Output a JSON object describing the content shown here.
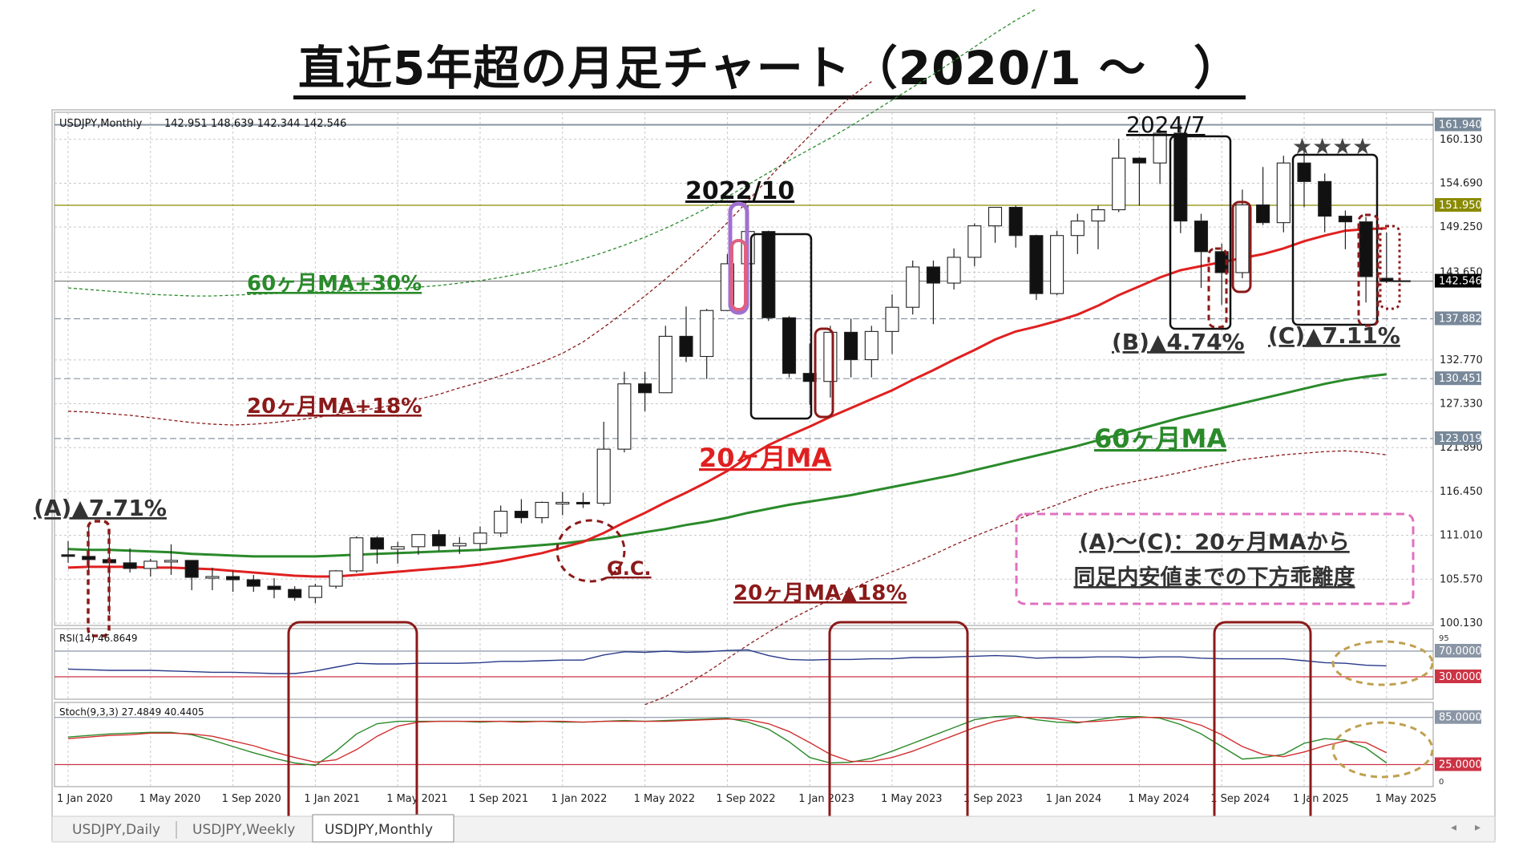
{
  "title": "直近5年超の月足チャート（2020/1 ～　）",
  "header": {
    "symbol": "USDJPY,Monthly",
    "ohlc": "142.951 148.639 142.344 142.546"
  },
  "price_axis": {
    "ticks": [
      "160.130",
      "154.690",
      "149.250",
      "143.650",
      "132.770",
      "127.330",
      "121.890",
      "116.450",
      "111.010",
      "105.570",
      "100.130"
    ],
    "marked": [
      {
        "label": "161.940",
        "bg": "#778899"
      },
      {
        "label": "151.950",
        "bg": "#8a8a00"
      },
      {
        "label": "142.546",
        "bg": "#000000"
      },
      {
        "label": "137.882",
        "bg": "#778899"
      },
      {
        "label": "130.451",
        "bg": "#778899"
      },
      {
        "label": "123.019",
        "bg": "#778899"
      }
    ]
  },
  "time_axis": [
    "1 Jan 2020",
    "1 May 2020",
    "1 Sep 2020",
    "1 Jan 2021",
    "1 May 2021",
    "1 Sep 2021",
    "1 Jan 2022",
    "1 May 2022",
    "1 Sep 2022",
    "1 Jan 2023",
    "1 May 2023",
    "1 Sep 2023",
    "1 Jan 2024",
    "1 May 2024",
    "1 Sep 2024",
    "1 Jan 2025",
    "1 May 2025"
  ],
  "rsi": {
    "label": "RSI(14) 46.8649",
    "levels": [
      "70.0000",
      "30.0000"
    ],
    "top_tick": "95"
  },
  "stoch": {
    "label": "Stoch(9,3,3) 27.4849 40.4405",
    "levels": [
      "85.0000",
      "25.0000"
    ],
    "bottom_tick": "0"
  },
  "tabs": [
    "USDJPY,Daily",
    "USDJPY,Weekly",
    "USDJPY,Monthly"
  ],
  "annotations": {
    "ma60_30": "60ヶ月MA+30%",
    "ma20_18": "20ヶ月MA+18%",
    "ma20": "20ヶ月MA",
    "ma60": "60ヶ月MA",
    "ma20_minus18": "20ヶ月MA▲18%",
    "gc": "G.C.",
    "y2022": "2022/10",
    "y2024": "2024/7",
    "stars": "★★★★",
    "a": "(A)▲7.71%",
    "b": "(B)▲4.74%",
    "c": "(C)▲7.11%",
    "note_line1": "(A)～(C)：20ヶ月MAから",
    "note_line2": "同足内安値までの下方乖離度"
  },
  "colors": {
    "ma20": "#e02020",
    "ma60": "#2a8a2a",
    "band_upper60": "#2a8a2a",
    "band20": "#8b1a1a",
    "rsi": "#283a8a",
    "stoch_main": "#2a8a2a",
    "stoch_signal": "#d03030",
    "annot_red": "#8b1a1a",
    "annot_green": "#2a8a2a"
  },
  "chart_data": {
    "type": "candlestick",
    "x": [
      "2020-01",
      "2020-02",
      "2020-03",
      "2020-04",
      "2020-05",
      "2020-06",
      "2020-07",
      "2020-08",
      "2020-09",
      "2020-10",
      "2020-11",
      "2020-12",
      "2021-01",
      "2021-02",
      "2021-03",
      "2021-04",
      "2021-05",
      "2021-06",
      "2021-07",
      "2021-08",
      "2021-09",
      "2021-10",
      "2021-11",
      "2021-12",
      "2022-01",
      "2022-02",
      "2022-03",
      "2022-04",
      "2022-05",
      "2022-06",
      "2022-07",
      "2022-08",
      "2022-09",
      "2022-10",
      "2022-11",
      "2022-12",
      "2023-01",
      "2023-02",
      "2023-03",
      "2023-04",
      "2023-05",
      "2023-06",
      "2023-07",
      "2023-08",
      "2023-09",
      "2023-10",
      "2023-11",
      "2023-12",
      "2024-01",
      "2024-02",
      "2024-03",
      "2024-04",
      "2024-05",
      "2024-06",
      "2024-07",
      "2024-08",
      "2024-09",
      "2024-10",
      "2024-11",
      "2024-12",
      "2025-01",
      "2025-02",
      "2025-03",
      "2025-04",
      "2025-05"
    ],
    "ohlc": [
      [
        108.6,
        110.3,
        107.6,
        108.4
      ],
      [
        108.4,
        112.2,
        106.1,
        108.0
      ],
      [
        108.0,
        111.7,
        101.2,
        107.6
      ],
      [
        107.6,
        109.4,
        106.4,
        106.9
      ],
      [
        106.9,
        108.1,
        105.9,
        107.8
      ],
      [
        107.8,
        109.9,
        106.1,
        107.9
      ],
      [
        107.9,
        107.9,
        104.2,
        105.8
      ],
      [
        105.8,
        107.0,
        104.2,
        105.9
      ],
      [
        105.9,
        106.6,
        104.0,
        105.5
      ],
      [
        105.5,
        106.1,
        104.0,
        104.7
      ],
      [
        104.7,
        105.7,
        103.2,
        104.3
      ],
      [
        104.3,
        104.7,
        102.9,
        103.3
      ],
      [
        103.3,
        105.0,
        102.6,
        104.7
      ],
      [
        104.7,
        106.7,
        104.4,
        106.6
      ],
      [
        106.6,
        110.9,
        106.4,
        110.7
      ],
      [
        110.7,
        110.9,
        107.5,
        109.3
      ],
      [
        109.3,
        110.2,
        107.5,
        109.6
      ],
      [
        109.6,
        111.1,
        108.6,
        111.1
      ],
      [
        111.1,
        111.7,
        109.1,
        109.7
      ],
      [
        109.7,
        110.8,
        108.7,
        110.0
      ],
      [
        110.0,
        112.1,
        109.1,
        111.3
      ],
      [
        111.3,
        114.7,
        110.8,
        114.0
      ],
      [
        114.0,
        115.5,
        112.5,
        113.2
      ],
      [
        113.2,
        115.2,
        112.5,
        115.1
      ],
      [
        115.1,
        116.4,
        113.5,
        115.1
      ],
      [
        115.1,
        116.3,
        114.4,
        115.0
      ],
      [
        115.0,
        125.1,
        114.7,
        121.7
      ],
      [
        121.7,
        131.3,
        121.3,
        129.8
      ],
      [
        129.8,
        131.3,
        126.4,
        128.7
      ],
      [
        128.7,
        137.0,
        128.7,
        135.7
      ],
      [
        135.7,
        139.4,
        132.5,
        133.2
      ],
      [
        133.2,
        139.1,
        130.4,
        138.9
      ],
      [
        138.9,
        145.9,
        138.9,
        144.7
      ],
      [
        144.7,
        151.9,
        143.5,
        148.7
      ],
      [
        148.7,
        148.8,
        137.6,
        138.0
      ],
      [
        138.0,
        138.2,
        130.6,
        131.1
      ],
      [
        131.1,
        134.8,
        127.2,
        130.1
      ],
      [
        130.1,
        137.0,
        128.1,
        136.2
      ],
      [
        136.2,
        137.9,
        130.6,
        132.8
      ],
      [
        132.8,
        137.0,
        130.6,
        136.3
      ],
      [
        136.3,
        140.9,
        133.5,
        139.3
      ],
      [
        139.3,
        145.1,
        138.4,
        144.3
      ],
      [
        144.3,
        145.1,
        137.2,
        142.3
      ],
      [
        142.3,
        146.6,
        141.5,
        145.5
      ],
      [
        145.5,
        149.7,
        144.4,
        149.4
      ],
      [
        149.4,
        151.7,
        147.3,
        151.7
      ],
      [
        151.7,
        151.9,
        146.7,
        148.2
      ],
      [
        148.2,
        148.3,
        140.2,
        141.0
      ],
      [
        141.0,
        148.8,
        140.8,
        148.2
      ],
      [
        148.2,
        150.9,
        145.9,
        150.0
      ],
      [
        150.0,
        151.9,
        146.5,
        151.4
      ],
      [
        151.4,
        160.2,
        151.1,
        157.8
      ],
      [
        157.8,
        157.9,
        151.9,
        157.2
      ],
      [
        157.2,
        161.3,
        154.6,
        160.9
      ],
      [
        160.9,
        162.0,
        148.5,
        150.0
      ],
      [
        150.0,
        150.9,
        141.7,
        146.2
      ],
      [
        146.2,
        147.2,
        139.6,
        143.6
      ],
      [
        143.6,
        153.9,
        142.9,
        152.0
      ],
      [
        152.0,
        156.7,
        149.5,
        149.8
      ],
      [
        149.8,
        158.1,
        148.6,
        157.2
      ],
      [
        157.2,
        158.9,
        151.7,
        154.9
      ],
      [
        154.9,
        155.9,
        148.6,
        150.6
      ],
      [
        150.6,
        151.3,
        146.5,
        149.9
      ],
      [
        149.9,
        150.5,
        139.9,
        143.1
      ],
      [
        142.9,
        148.6,
        142.3,
        142.5
      ]
    ],
    "ma20": [
      107.0,
      107.1,
      107.1,
      107.1,
      107.0,
      107.0,
      106.9,
      106.8,
      106.6,
      106.4,
      106.2,
      106.0,
      105.9,
      105.9,
      106.1,
      106.3,
      106.5,
      106.7,
      106.9,
      107.1,
      107.4,
      107.8,
      108.3,
      108.8,
      109.5,
      110.2,
      111.3,
      112.6,
      113.8,
      115.1,
      116.3,
      117.6,
      119.0,
      120.7,
      122.2,
      123.4,
      124.5,
      125.7,
      126.8,
      127.9,
      129.0,
      130.3,
      131.5,
      132.8,
      134.0,
      135.3,
      136.3,
      136.9,
      137.6,
      138.4,
      139.5,
      140.8,
      141.9,
      143.0,
      143.9,
      144.4,
      144.9,
      145.4,
      145.9,
      146.6,
      147.5,
      148.2,
      148.8,
      149.0,
      149.1
    ],
    "ma60": [
      109.3,
      109.2,
      109.2,
      109.1,
      109.0,
      108.9,
      108.7,
      108.6,
      108.5,
      108.4,
      108.4,
      108.4,
      108.4,
      108.5,
      108.6,
      108.7,
      108.8,
      108.9,
      109.0,
      109.1,
      109.2,
      109.4,
      109.6,
      109.8,
      110.0,
      110.3,
      110.6,
      111.0,
      111.4,
      111.8,
      112.3,
      112.7,
      113.2,
      113.8,
      114.3,
      114.8,
      115.2,
      115.6,
      116.0,
      116.5,
      117.0,
      117.5,
      118.0,
      118.5,
      119.1,
      119.7,
      120.3,
      120.9,
      121.5,
      122.1,
      122.8,
      123.5,
      124.2,
      124.9,
      125.6,
      126.2,
      126.8,
      127.4,
      128.0,
      128.6,
      129.2,
      129.8,
      130.3,
      130.7,
      131.0
    ],
    "ma60_plus30": [
      141.7,
      141.5,
      141.3,
      141.1,
      140.9,
      140.8,
      140.7,
      140.7,
      140.8,
      140.9,
      141.0,
      141.1,
      141.2,
      141.3,
      141.4,
      141.5,
      141.6,
      141.8,
      142.0,
      142.3,
      142.6,
      143.0,
      143.5,
      144.0,
      144.6,
      145.3,
      146.1,
      147.0,
      148.0,
      149.1,
      150.3,
      151.6,
      153.0,
      154.5,
      156.0,
      157.5,
      158.9,
      160.3,
      161.8,
      163.4,
      165.0,
      166.6,
      168.2,
      169.9,
      171.6,
      173.3,
      174.9,
      176.3
    ],
    "ma20_plus18": [
      126.4,
      126.3,
      126.1,
      125.9,
      125.6,
      125.3,
      125.0,
      124.8,
      124.7,
      124.8,
      125.0,
      125.3,
      125.6,
      126.0,
      126.4,
      126.8,
      127.3,
      127.9,
      128.5,
      129.3,
      130.0,
      130.8,
      131.6,
      132.5,
      133.6,
      135.0,
      136.8,
      138.7,
      140.7,
      142.8,
      145.0,
      147.3,
      149.8,
      152.5,
      155.3,
      158.0,
      160.6,
      163.2,
      165.4,
      167.3
    ],
    "ma20_minus18": [
      90.0,
      91.0,
      92.5,
      94.0,
      95.7,
      97.4,
      99.0,
      100.5,
      101.8,
      103.0,
      104.3,
      105.5,
      106.5,
      107.5,
      108.6,
      109.8,
      110.9,
      111.9,
      112.9,
      113.9,
      114.8,
      115.8,
      116.7,
      117.3,
      117.8,
      118.3,
      118.8,
      119.4,
      119.9,
      120.4,
      120.7,
      121.0,
      121.2,
      121.4,
      121.5,
      121.3,
      121.0
    ],
    "rsi": [
      42,
      41,
      40,
      40,
      40,
      39,
      38,
      37,
      37,
      36,
      35,
      35,
      39,
      45,
      51,
      50,
      50,
      51,
      51,
      51,
      52,
      54,
      54,
      55,
      56,
      56,
      64,
      69,
      68,
      70,
      68,
      69,
      71,
      72,
      63,
      57,
      56,
      57,
      57,
      58,
      58,
      60,
      60,
      61,
      62,
      63,
      62,
      59,
      60,
      60,
      61,
      61,
      60,
      61,
      61,
      59,
      58,
      58,
      58,
      58,
      55,
      52,
      51,
      48,
      47
    ],
    "stoch_main": [
      60,
      62,
      64,
      65,
      66,
      66,
      63,
      56,
      48,
      40,
      33,
      27,
      24,
      42,
      64,
      77,
      80,
      80,
      80,
      80,
      79,
      80,
      80,
      80,
      79,
      79,
      80,
      81,
      80,
      81,
      82,
      83,
      84,
      79,
      70,
      54,
      34,
      27,
      28,
      33,
      42,
      52,
      62,
      72,
      82,
      86,
      87,
      82,
      79,
      78,
      82,
      86,
      86,
      84,
      76,
      64,
      48,
      32,
      34,
      38,
      52,
      58,
      56,
      46,
      27
    ],
    "stoch_signal": [
      58,
      60,
      62,
      63,
      65,
      65,
      64,
      61,
      55,
      49,
      41,
      34,
      28,
      31,
      44,
      61,
      74,
      79,
      80,
      80,
      80,
      80,
      79,
      80,
      80,
      79,
      80,
      80,
      80,
      80,
      81,
      82,
      83,
      82,
      77,
      67,
      53,
      38,
      29,
      29,
      34,
      42,
      52,
      62,
      72,
      80,
      85,
      85,
      83,
      79,
      80,
      82,
      85,
      85,
      82,
      75,
      63,
      48,
      38,
      35,
      41,
      49,
      55,
      53,
      40
    ]
  }
}
